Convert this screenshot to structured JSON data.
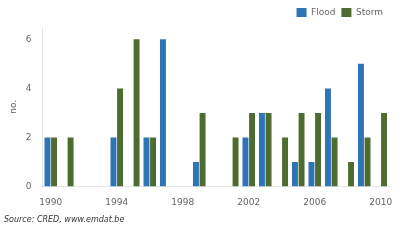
{
  "chart_data": {
    "type": "bar",
    "categories": [
      "1990",
      null,
      null,
      null,
      "1994",
      null,
      null,
      null,
      "1998",
      null,
      null,
      null,
      "2002",
      null,
      null,
      null,
      "2006",
      null,
      null,
      null,
      "2010"
    ],
    "series": [
      {
        "name": "Flood",
        "color": "#2e75b6",
        "values": [
          2,
          0,
          0,
          0,
          2,
          0,
          2,
          6,
          0,
          1,
          0,
          0,
          2,
          3,
          0,
          1,
          1,
          4,
          0,
          5,
          0
        ]
      },
      {
        "name": "Storm",
        "color": "#4e6b30",
        "values": [
          2,
          2,
          0,
          0,
          4,
          6,
          2,
          0,
          0,
          3,
          0,
          2,
          3,
          3,
          2,
          3,
          3,
          2,
          1,
          2,
          3
        ]
      }
    ],
    "ylabel": "no.",
    "ylim": [
      0,
      6.5
    ],
    "yticks": [
      0,
      2,
      4,
      6
    ],
    "annotations": [
      "Source: CRED, www.emdat.be"
    ],
    "legend": "upper right",
    "grid": false
  }
}
